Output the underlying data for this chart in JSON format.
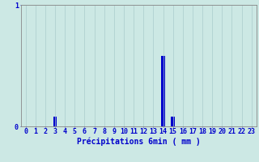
{
  "hours": [
    0,
    1,
    2,
    3,
    4,
    5,
    6,
    7,
    8,
    9,
    10,
    11,
    12,
    13,
    14,
    15,
    16,
    17,
    18,
    19,
    20,
    21,
    22,
    23
  ],
  "values": [
    0,
    0,
    0,
    0.08,
    0,
    0,
    0,
    0,
    0,
    0,
    0,
    0,
    0,
    0,
    0.58,
    0.08,
    0,
    0,
    0,
    0,
    0,
    0,
    0,
    0
  ],
  "bar_color": "#0000cc",
  "background_color": "#cce8e4",
  "grid_color": "#aacccc",
  "axis_color": "#888888",
  "text_color": "#0000cc",
  "xlabel": "Précipitations 6min ( mm )",
  "ylim": [
    0,
    1.0
  ],
  "ytick_vals": [
    0,
    1
  ],
  "ytick_labels": [
    "0",
    "1"
  ],
  "xlim": [
    -0.5,
    23.5
  ],
  "xlabel_fontsize": 7,
  "tick_fontsize": 6
}
